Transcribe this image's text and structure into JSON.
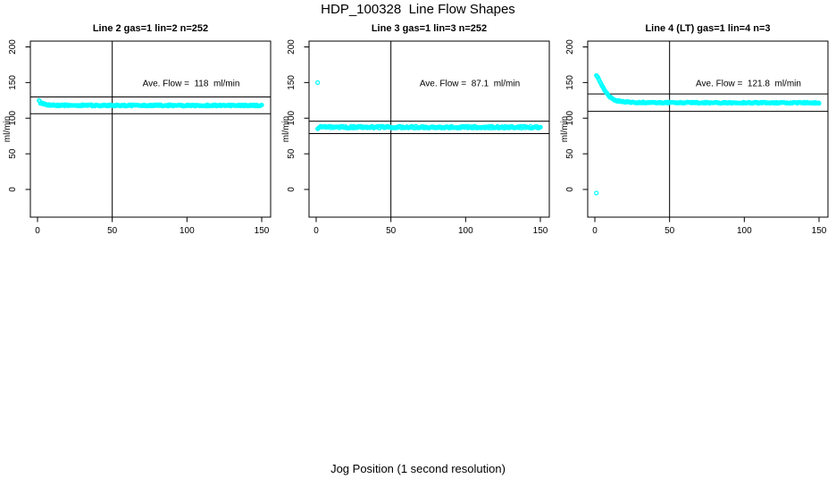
{
  "colors": {
    "points": "#00FFFF",
    "axis": "#000000",
    "background": "#FFFFFF"
  },
  "chart_data": {
    "type": "scatter",
    "layout": "1 row x 3 panels (R mfrow grid, bottom row empty)",
    "suptitle": "HDP_100328  Line Flow Shapes",
    "xlabel": "Jog Position (1 second resolution)",
    "ylabel": "ml/min",
    "x_ticks": [
      0,
      50,
      100,
      150
    ],
    "y_ticks": [
      0,
      50,
      100,
      150,
      200
    ],
    "xlim": [
      -5,
      156
    ],
    "ylim": [
      -39,
      208
    ],
    "grid": false,
    "vline_x": 50,
    "marker": {
      "shape": "open-circle",
      "color": "#00FFFF",
      "radius_px": 2,
      "stroke_px": 1.2
    },
    "panels": [
      {
        "title": "Line 2 gas=1 lin=2 n=252",
        "annotation": "Ave. Flow =  118  ml/min",
        "ave_flow_ml_min": 118,
        "ref_lines": [
          129.8,
          106.2
        ],
        "curve": [
          [
            1,
            124
          ],
          [
            2,
            121.5
          ],
          [
            3,
            120.5
          ],
          [
            4,
            119.8
          ],
          [
            6,
            119
          ],
          [
            9,
            118.4
          ],
          [
            14,
            118.1
          ],
          [
            30,
            118
          ],
          [
            80,
            118
          ],
          [
            150,
            117.7
          ]
        ],
        "outliers": [],
        "spread": 1.0
      },
      {
        "title": "Line 3 gas=1 lin=3 n=252",
        "annotation": "Ave. Flow =  87.1  ml/min",
        "ave_flow_ml_min": 87.1,
        "ref_lines": [
          95.8,
          78.4
        ],
        "curve": [
          [
            1,
            85.5
          ],
          [
            1.5,
            86.5
          ],
          [
            3,
            87.4
          ],
          [
            75,
            87.4
          ],
          [
            150,
            87.3
          ]
        ],
        "outliers": [
          [
            1,
            150
          ]
        ],
        "spread": 1.3
      },
      {
        "title": "Line 4 (LT) gas=1 lin=4 n=3",
        "annotation": "Ave. Flow =  121.8  ml/min",
        "ave_flow_ml_min": 121.8,
        "ref_lines": [
          134.0,
          109.6
        ],
        "curve": [
          [
            1,
            160
          ],
          [
            1.5,
            158.5
          ],
          [
            2,
            157
          ],
          [
            2.5,
            155
          ],
          [
            3,
            153
          ],
          [
            3.5,
            151
          ],
          [
            4,
            149
          ],
          [
            4.5,
            147
          ],
          [
            5,
            145
          ],
          [
            5.5,
            143
          ],
          [
            6,
            141
          ],
          [
            6.5,
            139.5
          ],
          [
            7,
            138
          ],
          [
            7.5,
            136.5
          ],
          [
            8,
            135
          ],
          [
            8.5,
            133.5
          ],
          [
            9,
            132
          ],
          [
            10,
            130
          ],
          [
            11,
            128.5
          ],
          [
            12,
            127
          ],
          [
            13,
            126
          ],
          [
            14,
            125.2
          ],
          [
            15,
            124.5
          ],
          [
            16,
            124
          ],
          [
            18,
            123.3
          ],
          [
            20,
            122.8
          ],
          [
            25,
            122.2
          ],
          [
            30,
            122
          ],
          [
            40,
            121.9
          ],
          [
            60,
            121.8
          ],
          [
            100,
            121.6
          ],
          [
            150,
            121.5
          ]
        ],
        "outliers": [
          [
            1,
            -5
          ]
        ],
        "spread": 0.9
      }
    ]
  }
}
